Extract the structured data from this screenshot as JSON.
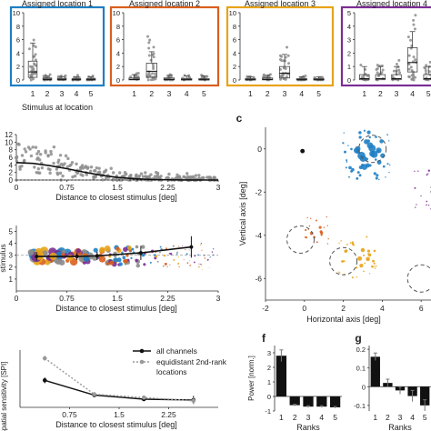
{
  "colors": {
    "loc1": "#1f7fc4",
    "loc2": "#d95f1e",
    "loc3": "#e8a317",
    "loc4": "#7b2d94",
    "grey": "#8c8c8c",
    "box": "#444444"
  },
  "panel_labels": {
    "c": "c",
    "f": "f",
    "g": "g"
  },
  "chart_data": [
    {
      "id": "a",
      "type": "box",
      "xlabel": "Stimulus at location",
      "groups": [
        {
          "title": "Assigned location 1",
          "ylim": [
            0,
            10
          ],
          "yticks": [
            0,
            2,
            4,
            6,
            8,
            10
          ],
          "categories": [
            "1",
            "2",
            "3",
            "4",
            "5"
          ],
          "medians": [
            1.2,
            0.1,
            0.05,
            0.05,
            0.05
          ],
          "q1": [
            0.4,
            0.02,
            0.01,
            0.01,
            0.01
          ],
          "q3": [
            2.8,
            0.3,
            0.2,
            0.2,
            0.2
          ],
          "whisker_hi": [
            5.5,
            0.6,
            0.5,
            0.5,
            0.5
          ]
        },
        {
          "title": "Assigned location 2",
          "ylim": [
            0,
            10
          ],
          "yticks": [
            0,
            2,
            4,
            6,
            8,
            10
          ],
          "categories": [
            "1",
            "2",
            "3",
            "4",
            "5"
          ],
          "medians": [
            0.1,
            1.3,
            0.1,
            0.05,
            0.05
          ],
          "q1": [
            0.02,
            0.4,
            0.02,
            0.01,
            0.01
          ],
          "q3": [
            0.3,
            2.5,
            0.3,
            0.2,
            0.2
          ],
          "whisker_hi": [
            0.8,
            4.2,
            0.7,
            0.6,
            0.6
          ]
        },
        {
          "title": "Assigned location 3",
          "ylim": [
            0,
            10
          ],
          "yticks": [
            0,
            2,
            4,
            6,
            8,
            10
          ],
          "categories": [
            "1",
            "2",
            "3",
            "4",
            "5"
          ],
          "medians": [
            0.05,
            0.1,
            1.0,
            0.05,
            0.05
          ],
          "q1": [
            0.01,
            0.02,
            0.3,
            0.01,
            0.01
          ],
          "q3": [
            0.2,
            0.3,
            2.0,
            0.2,
            0.2
          ],
          "whisker_hi": [
            0.5,
            0.7,
            3.8,
            0.5,
            0.5
          ]
        },
        {
          "title": "Assigned location 4",
          "ylim": [
            0,
            5
          ],
          "yticks": [
            0,
            1,
            2,
            3,
            4,
            5
          ],
          "categories": [
            "1",
            "2",
            "3",
            "4",
            "5"
          ],
          "medians": [
            0.1,
            0.1,
            0.1,
            1.3,
            0.1
          ],
          "q1": [
            0.02,
            0.02,
            0.02,
            0.6,
            0.02
          ],
          "q3": [
            0.4,
            0.4,
            0.4,
            2.4,
            0.4
          ],
          "whisker_hi": [
            1.0,
            1.0,
            1.0,
            3.6,
            1.0
          ]
        }
      ]
    },
    {
      "id": "b",
      "type": "scatter",
      "xlabel": "Distance to closest stimulus [deg]",
      "xlim": [
        0,
        3
      ],
      "ylim": [
        0,
        12
      ],
      "xticks": [
        "0",
        "0.75",
        "1.5",
        "2.25",
        "3"
      ],
      "yticks": [
        0,
        2,
        4,
        6,
        8,
        10,
        12
      ],
      "fit": {
        "x": [
          0,
          0.25,
          0.5,
          0.75,
          1.0,
          1.25,
          1.5,
          1.75,
          2.0,
          2.25,
          2.5,
          3.0
        ],
        "y": [
          4.6,
          4.4,
          3.8,
          3.0,
          2.1,
          1.3,
          0.7,
          0.35,
          0.15,
          0.06,
          0.02,
          0
        ]
      }
    },
    {
      "id": "d",
      "type": "scatter",
      "ylabel": "stimulus",
      "xlabel": "Distance to closest stimulus [deg]",
      "xlim": [
        0,
        3
      ],
      "ylim": [
        0,
        5.5
      ],
      "xticks": [
        "0",
        "0.75",
        "1.5",
        "2.25",
        "3"
      ],
      "yticks": [
        1,
        2,
        3,
        4,
        5
      ],
      "mean_line": {
        "x": [
          0.3,
          0.9,
          1.2,
          1.85,
          2.6
        ],
        "y": [
          2.9,
          2.9,
          2.95,
          3.2,
          3.7
        ],
        "err": [
          0.35,
          0.3,
          0.35,
          0.6,
          0.9
        ]
      },
      "reference_y": 3
    },
    {
      "id": "c",
      "type": "scatter",
      "xlabel": "Horizontal axis [deg]",
      "ylabel": "Vertical axis [deg]",
      "xlim": [
        -2,
        8
      ],
      "ylim": [
        -7,
        1
      ],
      "xticks": [
        -2,
        0,
        2,
        4,
        6
      ],
      "yticks": [
        0,
        -2,
        -4,
        -6
      ],
      "stimuli_circles": [
        {
          "x": 3.5,
          "y": 0
        },
        {
          "x": 7.2,
          "y": -1.9
        },
        {
          "x": -0.2,
          "y": -4.2
        },
        {
          "x": 2.0,
          "y": -5.2
        },
        {
          "x": 6.0,
          "y": -6.0
        }
      ]
    },
    {
      "id": "e",
      "type": "line",
      "ylabel": "Spatial sensitivity [SPI]",
      "xlabel": "Distance to closest stimulus [deg]",
      "xticks": [
        "0.75",
        "1.5",
        "2.25"
      ],
      "legend": [
        "all channels",
        "equidistant 2nd-rank locations"
      ],
      "series": [
        {
          "name": "all channels",
          "x": [
            0.375,
            1.125,
            1.875,
            2.625
          ],
          "y": [
            3.3,
            1.5,
            1.0,
            0.9
          ],
          "err": [
            0.35,
            0.12,
            0.15,
            0.5
          ]
        },
        {
          "name": "equidistant 2nd-rank locations",
          "x": [
            0.375,
            1.125,
            1.875,
            2.625
          ],
          "y": [
            6.0,
            1.6,
            1.2,
            0.8
          ],
          "err": [
            0.3,
            0.12,
            0.2,
            0.4
          ]
        }
      ],
      "ylim": [
        0,
        7
      ]
    },
    {
      "id": "f",
      "type": "bar",
      "ylabel": "Power [norm.]",
      "xlabel": "Ranks",
      "categories": [
        "1",
        "2",
        "3",
        "4",
        "5"
      ],
      "values": [
        2.8,
        -0.6,
        -0.7,
        -0.7,
        -0.75
      ],
      "err": [
        0.4,
        0.06,
        0.06,
        0.06,
        0.06
      ],
      "ylim": [
        -1,
        3.5
      ],
      "yticks": [
        -1,
        0,
        1,
        2,
        3
      ]
    },
    {
      "id": "g",
      "type": "bar",
      "xlabel": "Ranks",
      "categories": [
        "1",
        "2",
        "3",
        "4",
        "5"
      ],
      "values": [
        0.16,
        0.02,
        -0.02,
        -0.05,
        -0.1
      ],
      "err": [
        0.02,
        0.02,
        0.02,
        0.03,
        0.03
      ],
      "ylim": [
        -0.13,
        0.22
      ],
      "yticks": [
        -0.1,
        0,
        0.1,
        0.2
      ]
    }
  ]
}
